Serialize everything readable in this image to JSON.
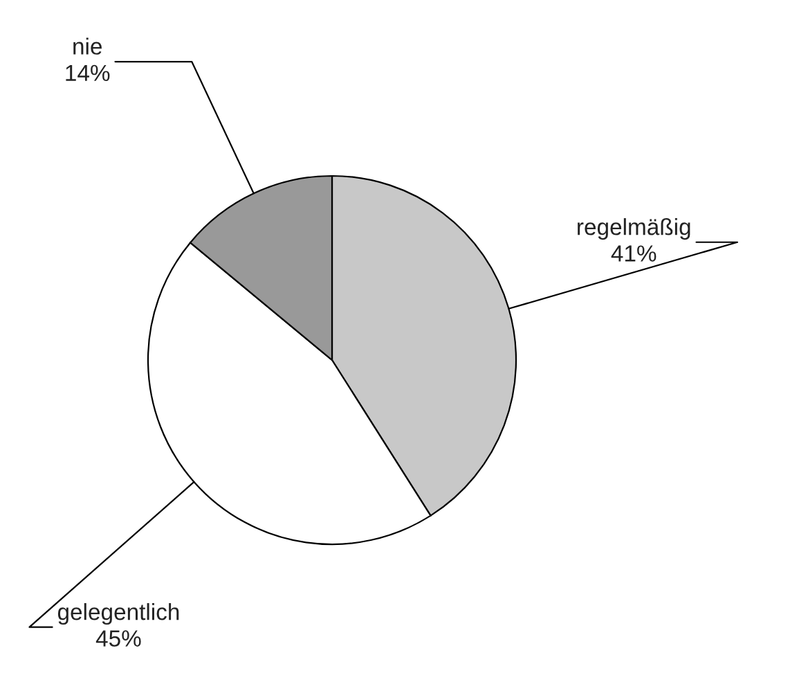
{
  "chart_data": {
    "type": "pie",
    "categories": [
      "regelmäßig",
      "gelegentlich",
      "nie"
    ],
    "values": [
      41,
      45,
      14
    ],
    "value_labels": [
      "41%",
      "45%",
      "14%"
    ],
    "colors": [
      "#c8c8c8",
      "#ffffff",
      "#999999"
    ]
  }
}
